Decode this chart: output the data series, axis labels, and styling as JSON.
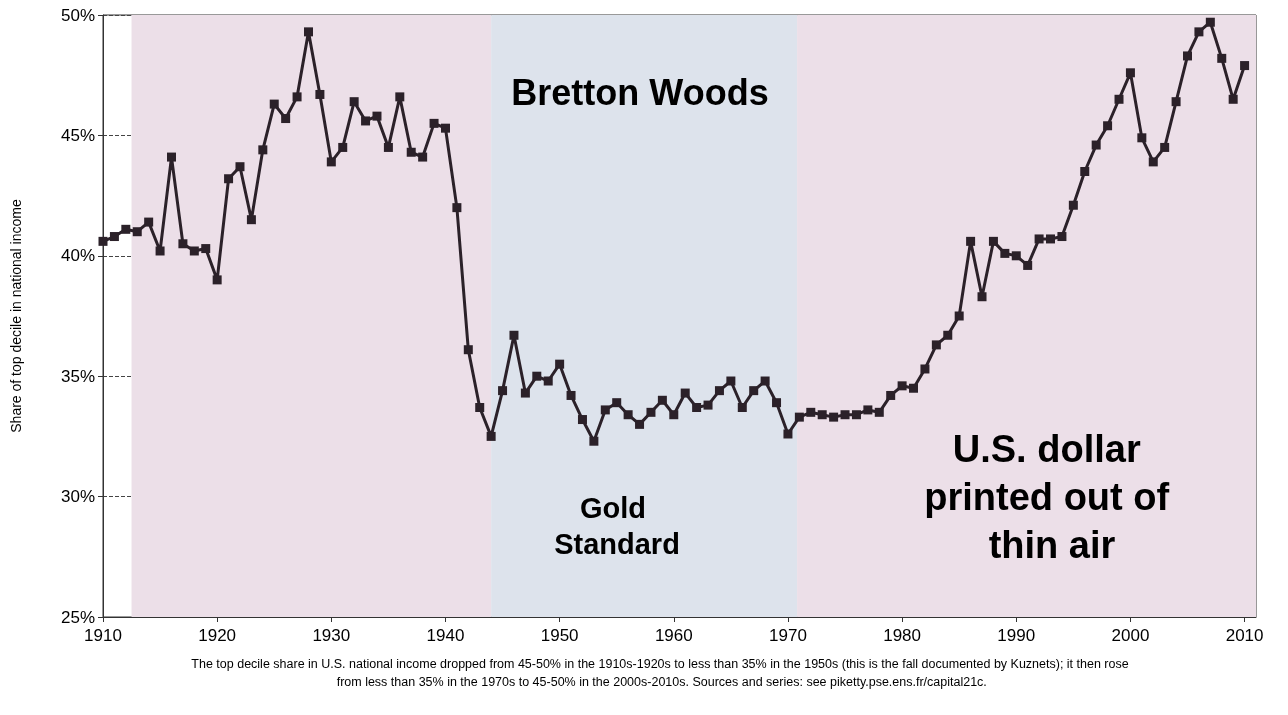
{
  "chart_data": {
    "type": "line",
    "ylabel": "Share of top decile in national income",
    "x": [
      1910,
      1911,
      1912,
      1913,
      1914,
      1915,
      1916,
      1917,
      1918,
      1919,
      1920,
      1921,
      1922,
      1923,
      1924,
      1925,
      1926,
      1927,
      1928,
      1929,
      1930,
      1931,
      1932,
      1933,
      1934,
      1935,
      1936,
      1937,
      1938,
      1939,
      1940,
      1941,
      1942,
      1943,
      1944,
      1945,
      1946,
      1947,
      1948,
      1949,
      1950,
      1951,
      1952,
      1953,
      1954,
      1955,
      1956,
      1957,
      1958,
      1959,
      1960,
      1961,
      1962,
      1963,
      1964,
      1965,
      1966,
      1967,
      1968,
      1969,
      1970,
      1971,
      1972,
      1973,
      1974,
      1975,
      1976,
      1977,
      1978,
      1979,
      1980,
      1981,
      1982,
      1983,
      1984,
      1985,
      1986,
      1987,
      1988,
      1989,
      1990,
      1991,
      1992,
      1993,
      1994,
      1995,
      1996,
      1997,
      1998,
      1999,
      2000,
      2001,
      2002,
      2003,
      2004,
      2005,
      2006,
      2007,
      2008,
      2009,
      2010
    ],
    "series": [
      {
        "color": "#2b2129",
        "values": [
          40.6,
          40.8,
          41.1,
          41.0,
          41.4,
          40.2,
          44.1,
          40.5,
          40.2,
          40.3,
          39.0,
          43.2,
          43.7,
          41.5,
          44.4,
          46.3,
          45.7,
          46.6,
          49.3,
          46.7,
          43.9,
          44.5,
          46.4,
          45.6,
          45.8,
          44.5,
          46.6,
          44.3,
          44.1,
          45.5,
          45.3,
          42.0,
          36.1,
          33.7,
          32.5,
          34.4,
          36.7,
          34.3,
          35.0,
          34.8,
          35.5,
          34.2,
          33.2,
          32.3,
          33.6,
          33.9,
          33.4,
          33.0,
          33.5,
          34.0,
          33.4,
          34.3,
          33.7,
          33.8,
          34.4,
          34.8,
          33.7,
          34.4,
          34.8,
          33.9,
          32.6,
          33.3,
          33.5,
          33.4,
          33.3,
          33.4,
          33.4,
          33.6,
          33.5,
          34.2,
          34.6,
          34.5,
          35.3,
          36.3,
          36.7,
          37.5,
          40.6,
          38.3,
          40.6,
          40.1,
          40.0,
          39.6,
          40.7,
          40.7,
          40.8,
          42.1,
          43.5,
          44.6,
          45.4,
          46.5,
          47.6,
          44.9,
          43.9,
          44.5,
          46.4,
          48.3,
          49.3,
          49.7,
          48.2,
          46.5,
          47.9
        ]
      }
    ],
    "xlim": [
      1910,
      2011
    ],
    "xticks": [
      1910,
      1920,
      1930,
      1940,
      1950,
      1960,
      1970,
      1980,
      1990,
      2000,
      2010
    ],
    "ylim": [
      25,
      50
    ],
    "yticks": [
      {
        "value": 25,
        "label": "25%"
      },
      {
        "value": 30,
        "label": "30%"
      },
      {
        "value": 35,
        "label": "35%"
      },
      {
        "value": 40,
        "label": "40%"
      },
      {
        "value": 45,
        "label": "45%"
      },
      {
        "value": 50,
        "label": "50%"
      }
    ],
    "grid": true,
    "marker": "square",
    "line_style": "solid",
    "bands": [
      {
        "axis": "x",
        "from": 1912.5,
        "to": 1944,
        "color": "#ecdfe8"
      },
      {
        "axis": "x",
        "from": 1944,
        "to": 1970.8,
        "color": "#dde3ec"
      },
      {
        "axis": "x",
        "from": 1970.8,
        "to": 2011,
        "color": "#ecdfe8"
      }
    ],
    "annotations": [
      "Bretton Woods",
      "Gold Standard",
      "U.S. dollar printed out of thin air",
      "The top decile share in U.S. national income dropped from 45-50% in the 1910s-1920s to less than 35% in the 1950s (this is the fall documented by Kuznets); it then rose from less than 35% in the 1970s to 45-50% in the 2000s-2010s. Sources and series: see piketty.pse.ens.fr/capital21c."
    ]
  }
}
